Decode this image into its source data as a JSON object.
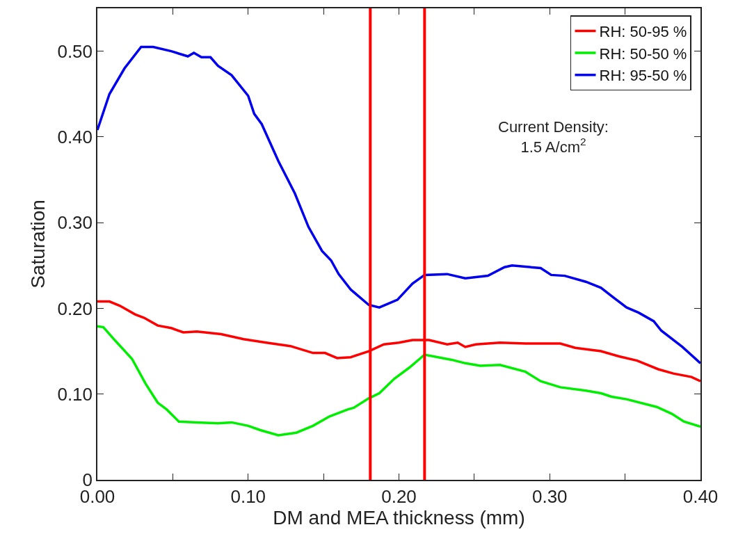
{
  "chart_data": {
    "type": "line",
    "xlabel": "DM and MEA thickness (mm)",
    "ylabel": "Saturation",
    "xlim": [
      0,
      0.4
    ],
    "ylim": [
      0,
      0.55
    ],
    "xticks": [
      {
        "value": 0,
        "label": "0.00"
      },
      {
        "value": 0.05,
        "label": null
      },
      {
        "value": 0.1,
        "label": "0.10"
      },
      {
        "value": 0.15,
        "label": null
      },
      {
        "value": 0.2,
        "label": "0.20"
      },
      {
        "value": 0.25,
        "label": null
      },
      {
        "value": 0.3,
        "label": "0.30"
      },
      {
        "value": 0.35,
        "label": null
      },
      {
        "value": 0.4,
        "label": "0.40"
      }
    ],
    "yticks": [
      {
        "value": 0,
        "label": "0"
      },
      {
        "value": 0.1,
        "label": "0.10"
      },
      {
        "value": 0.2,
        "label": "0.20"
      },
      {
        "value": 0.3,
        "label": "0.30"
      },
      {
        "value": 0.4,
        "label": "0.40"
      },
      {
        "value": 0.5,
        "label": "0.50"
      }
    ],
    "legend": "top right",
    "marker": "none",
    "line_style": "solid",
    "annotations": [
      "Current Density:\n1.5 A/cm$^{2}$"
    ],
    "ref_lines": [
      {
        "axis": "x",
        "value": 0.181,
        "label": null,
        "color": "#ff0000"
      },
      {
        "axis": "x",
        "value": 0.217,
        "label": null,
        "color": "#ff0000"
      }
    ],
    "series": [
      {
        "name": "RH: 50-95 %",
        "color": "#ff0000",
        "x": [
          0,
          0.008,
          0.015,
          0.025,
          0.031,
          0.04,
          0.049,
          0.057,
          0.066,
          0.082,
          0.097,
          0.112,
          0.128,
          0.143,
          0.151,
          0.159,
          0.168,
          0.18,
          0.19,
          0.2,
          0.209,
          0.22,
          0.232,
          0.239,
          0.244,
          0.251,
          0.267,
          0.284,
          0.307,
          0.317,
          0.334,
          0.346,
          0.358,
          0.372,
          0.382,
          0.394,
          0.4
        ],
        "values": [
          0.208,
          0.208,
          0.203,
          0.193,
          0.189,
          0.18,
          0.177,
          0.172,
          0.173,
          0.17,
          0.164,
          0.16,
          0.156,
          0.148,
          0.148,
          0.142,
          0.143,
          0.15,
          0.158,
          0.16,
          0.163,
          0.163,
          0.158,
          0.16,
          0.155,
          0.158,
          0.16,
          0.159,
          0.159,
          0.154,
          0.15,
          0.144,
          0.139,
          0.129,
          0.124,
          0.12,
          0.115
        ]
      },
      {
        "name": "RH: 50-50 %",
        "color": "#00ee00",
        "x": [
          0,
          0.004,
          0.012,
          0.023,
          0.032,
          0.04,
          0.046,
          0.054,
          0.066,
          0.08,
          0.089,
          0.1,
          0.108,
          0.12,
          0.132,
          0.143,
          0.154,
          0.166,
          0.17,
          0.18,
          0.187,
          0.197,
          0.207,
          0.217,
          0.235,
          0.244,
          0.254,
          0.267,
          0.284,
          0.294,
          0.307,
          0.324,
          0.334,
          0.341,
          0.351,
          0.371,
          0.381,
          0.389,
          0.4
        ],
        "values": [
          0.179,
          0.178,
          0.162,
          0.141,
          0.112,
          0.09,
          0.082,
          0.068,
          0.067,
          0.066,
          0.067,
          0.063,
          0.058,
          0.052,
          0.055,
          0.063,
          0.074,
          0.082,
          0.084,
          0.095,
          0.101,
          0.118,
          0.131,
          0.146,
          0.14,
          0.136,
          0.133,
          0.134,
          0.126,
          0.115,
          0.108,
          0.104,
          0.101,
          0.097,
          0.094,
          0.085,
          0.077,
          0.068,
          0.062
        ]
      },
      {
        "name": "RH: 95-50 %",
        "color": "#0000ee",
        "x": [
          0,
          0.008,
          0.018,
          0.029,
          0.037,
          0.049,
          0.06,
          0.064,
          0.069,
          0.075,
          0.08,
          0.089,
          0.1,
          0.104,
          0.109,
          0.12,
          0.131,
          0.14,
          0.149,
          0.155,
          0.16,
          0.168,
          0.18,
          0.187,
          0.199,
          0.209,
          0.217,
          0.232,
          0.244,
          0.259,
          0.27,
          0.275,
          0.294,
          0.301,
          0.31,
          0.324,
          0.334,
          0.342,
          0.351,
          0.359,
          0.369,
          0.374,
          0.388,
          0.4
        ],
        "values": [
          0.408,
          0.45,
          0.48,
          0.505,
          0.505,
          0.5,
          0.494,
          0.498,
          0.493,
          0.493,
          0.483,
          0.472,
          0.448,
          0.427,
          0.415,
          0.372,
          0.334,
          0.295,
          0.267,
          0.256,
          0.24,
          0.222,
          0.204,
          0.201,
          0.21,
          0.229,
          0.239,
          0.24,
          0.235,
          0.238,
          0.248,
          0.25,
          0.247,
          0.239,
          0.238,
          0.231,
          0.224,
          0.213,
          0.201,
          0.195,
          0.185,
          0.174,
          0.155,
          0.136
        ]
      }
    ]
  }
}
